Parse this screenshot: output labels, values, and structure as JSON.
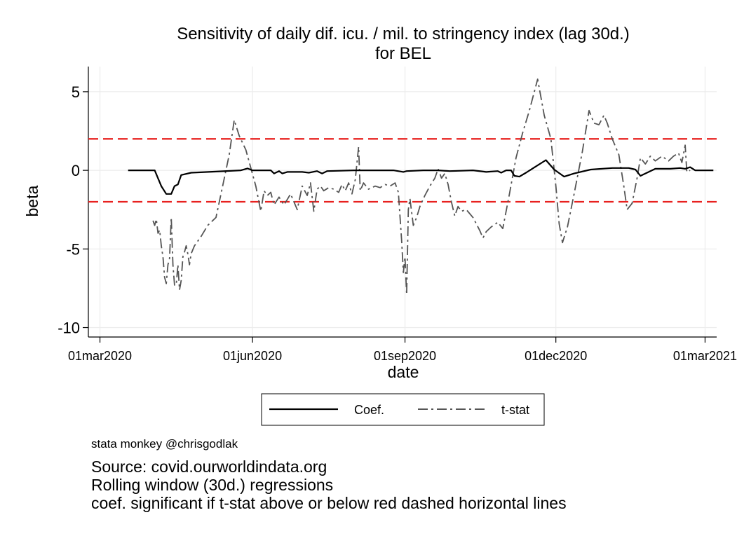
{
  "chart_data": {
    "type": "line",
    "title": [
      "Sensitivity of daily dif. icu. / mil. to stringency index (lag 30d.)",
      "for BEL"
    ],
    "xlabel": "date",
    "ylabel": "beta",
    "x_axis": {
      "range": [
        "2020-02-23",
        "2021-03-08"
      ],
      "ticks": [
        "2020-03-01",
        "2020-06-01",
        "2020-09-01",
        "2020-12-01",
        "2021-03-01"
      ],
      "tick_labels": [
        "01mar2020",
        "01jun2020",
        "01sep2020",
        "01dec2020",
        "01mar2021"
      ]
    },
    "y_axis": {
      "range": [
        -10.6,
        6.6
      ],
      "ticks": [
        5,
        0,
        -5,
        -10
      ],
      "tick_labels": [
        "5",
        "0",
        "-5",
        "-10"
      ]
    },
    "grid": true,
    "reference_lines": [
      {
        "y": 2,
        "color": "#e8211f",
        "style": "dashed"
      },
      {
        "y": -2,
        "color": "#e8211f",
        "style": "dashed"
      }
    ],
    "legend": {
      "position": "bottom",
      "entries": [
        "Coef.",
        "t-stat"
      ]
    },
    "series": [
      {
        "name": "Coef.",
        "color": "#000000",
        "style": "solid",
        "points": [
          [
            "2020-03-18",
            0
          ],
          [
            "2020-04-03",
            0
          ],
          [
            "2020-04-07",
            -1.0
          ],
          [
            "2020-04-10",
            -1.5
          ],
          [
            "2020-04-13",
            -1.5
          ],
          [
            "2020-04-15",
            -1.0
          ],
          [
            "2020-04-17",
            -0.9
          ],
          [
            "2020-04-19",
            -0.3
          ],
          [
            "2020-04-25",
            -0.15
          ],
          [
            "2020-05-10",
            -0.08
          ],
          [
            "2020-05-25",
            0
          ],
          [
            "2020-05-29",
            0.12
          ],
          [
            "2020-06-01",
            0
          ],
          [
            "2020-06-12",
            0
          ],
          [
            "2020-06-14",
            -0.2
          ],
          [
            "2020-06-17",
            -0.05
          ],
          [
            "2020-06-19",
            -0.2
          ],
          [
            "2020-06-22",
            -0.1
          ],
          [
            "2020-07-01",
            -0.1
          ],
          [
            "2020-07-05",
            -0.15
          ],
          [
            "2020-07-10",
            -0.05
          ],
          [
            "2020-07-13",
            -0.2
          ],
          [
            "2020-07-16",
            -0.05
          ],
          [
            "2020-08-01",
            0
          ],
          [
            "2020-08-20",
            0
          ],
          [
            "2020-08-25",
            0
          ],
          [
            "2020-08-31",
            -0.1
          ],
          [
            "2020-09-02",
            -0.05
          ],
          [
            "2020-09-12",
            0
          ],
          [
            "2020-09-21",
            0
          ],
          [
            "2020-09-28",
            -0.05
          ],
          [
            "2020-10-12",
            0
          ],
          [
            "2020-10-20",
            -0.1
          ],
          [
            "2020-10-27",
            -0.05
          ],
          [
            "2020-10-29",
            -0.15
          ],
          [
            "2020-11-01",
            0
          ],
          [
            "2020-11-04",
            0
          ],
          [
            "2020-11-06",
            -0.35
          ],
          [
            "2020-11-09",
            -0.4
          ],
          [
            "2020-11-13",
            -0.15
          ],
          [
            "2020-11-25",
            0.65
          ],
          [
            "2020-11-30",
            0.05
          ],
          [
            "2020-12-06",
            -0.4
          ],
          [
            "2020-12-12",
            -0.2
          ],
          [
            "2020-12-22",
            0.05
          ],
          [
            "2021-01-04",
            0.15
          ],
          [
            "2021-01-14",
            0.15
          ],
          [
            "2021-01-18",
            0.05
          ],
          [
            "2021-01-21",
            -0.35
          ],
          [
            "2021-01-25",
            -0.15
          ],
          [
            "2021-01-30",
            0.1
          ],
          [
            "2021-02-08",
            0.1
          ],
          [
            "2021-02-14",
            0.15
          ],
          [
            "2021-02-17",
            0.1
          ],
          [
            "2021-02-20",
            0.2
          ],
          [
            "2021-02-23",
            0
          ],
          [
            "2021-03-06",
            0
          ]
        ]
      },
      {
        "name": "t-stat",
        "color": "#555555",
        "style": "dash-dot",
        "points": [
          [
            "2020-04-02",
            -3.2
          ],
          [
            "2020-04-03",
            -3.5
          ],
          [
            "2020-04-04",
            -3.1
          ],
          [
            "2020-04-05",
            -4.0
          ],
          [
            "2020-04-06",
            -3.8
          ],
          [
            "2020-04-07",
            -4.8
          ],
          [
            "2020-04-08",
            -5.5
          ],
          [
            "2020-04-09",
            -6.8
          ],
          [
            "2020-04-10",
            -7.2
          ],
          [
            "2020-04-11",
            -6.0
          ],
          [
            "2020-04-12",
            -5.6
          ],
          [
            "2020-04-13",
            -3.0
          ],
          [
            "2020-04-14",
            -6.0
          ],
          [
            "2020-04-15",
            -7.3
          ],
          [
            "2020-04-16",
            -7.3
          ],
          [
            "2020-04-17",
            -6.0
          ],
          [
            "2020-04-18",
            -7.6
          ],
          [
            "2020-04-19",
            -7.0
          ],
          [
            "2020-04-20",
            -5.5
          ],
          [
            "2020-04-21",
            -5.2
          ],
          [
            "2020-04-22",
            -4.8
          ],
          [
            "2020-04-23",
            -5.3
          ],
          [
            "2020-04-24",
            -6.0
          ],
          [
            "2020-04-25",
            -5.3
          ],
          [
            "2020-04-27",
            -4.8
          ],
          [
            "2020-05-01",
            -4.2
          ],
          [
            "2020-05-05",
            -3.5
          ],
          [
            "2020-05-10",
            -3.0
          ],
          [
            "2020-05-14",
            -1.0
          ],
          [
            "2020-05-18",
            1.0
          ],
          [
            "2020-05-21",
            3.2
          ],
          [
            "2020-05-24",
            2.2
          ],
          [
            "2020-05-28",
            1.3
          ],
          [
            "2020-06-03",
            -1.0
          ],
          [
            "2020-06-06",
            -2.6
          ],
          [
            "2020-06-08",
            -1.3
          ],
          [
            "2020-06-10",
            -1.6
          ],
          [
            "2020-06-12",
            -1.4
          ],
          [
            "2020-06-14",
            -2.2
          ],
          [
            "2020-06-17",
            -1.7
          ],
          [
            "2020-06-20",
            -2.2
          ],
          [
            "2020-06-24",
            -1.5
          ],
          [
            "2020-06-28",
            -2.5
          ],
          [
            "2020-07-01",
            -1.0
          ],
          [
            "2020-07-04",
            -1.6
          ],
          [
            "2020-07-06",
            -0.8
          ],
          [
            "2020-07-08",
            -2.6
          ],
          [
            "2020-07-10",
            -1.2
          ],
          [
            "2020-07-12",
            -1.0
          ],
          [
            "2020-07-14",
            -1.3
          ],
          [
            "2020-07-17",
            -1.1
          ],
          [
            "2020-07-20",
            -1.2
          ],
          [
            "2020-07-23",
            -1.4
          ],
          [
            "2020-07-25",
            -0.9
          ],
          [
            "2020-07-27",
            -1.3
          ],
          [
            "2020-07-29",
            -0.8
          ],
          [
            "2020-07-31",
            -1.5
          ],
          [
            "2020-08-02",
            -0.6
          ],
          [
            "2020-08-04",
            1.5
          ],
          [
            "2020-08-05",
            -1.3
          ],
          [
            "2020-08-07",
            -0.8
          ],
          [
            "2020-08-10",
            -1.2
          ],
          [
            "2020-08-14",
            -1.0
          ],
          [
            "2020-08-17",
            -1.1
          ],
          [
            "2020-08-20",
            -0.9
          ],
          [
            "2020-08-23",
            -1.0
          ],
          [
            "2020-08-26",
            -0.8
          ],
          [
            "2020-08-28",
            -1.4
          ],
          [
            "2020-08-30",
            -4.5
          ],
          [
            "2020-08-31",
            -6.5
          ],
          [
            "2020-09-01",
            -5.5
          ],
          [
            "2020-09-02",
            -7.9
          ],
          [
            "2020-09-03",
            -2.5
          ],
          [
            "2020-09-04",
            -1.8
          ],
          [
            "2020-09-06",
            -3.5
          ],
          [
            "2020-09-08",
            -3.0
          ],
          [
            "2020-09-10",
            -2.3
          ],
          [
            "2020-09-13",
            -1.6
          ],
          [
            "2020-09-16",
            -1.0
          ],
          [
            "2020-09-19",
            -0.5
          ],
          [
            "2020-09-21",
            0.1
          ],
          [
            "2020-09-23",
            -0.5
          ],
          [
            "2020-09-25",
            -0.2
          ],
          [
            "2020-09-27",
            -0.9
          ],
          [
            "2020-09-29",
            -2.0
          ],
          [
            "2020-10-01",
            -2.9
          ],
          [
            "2020-10-03",
            -2.3
          ],
          [
            "2020-10-05",
            -2.6
          ],
          [
            "2020-10-08",
            -2.5
          ],
          [
            "2020-10-12",
            -3.0
          ],
          [
            "2020-10-16",
            -3.8
          ],
          [
            "2020-10-18",
            -4.3
          ],
          [
            "2020-10-20",
            -3.9
          ],
          [
            "2020-10-23",
            -3.6
          ],
          [
            "2020-10-27",
            -3.3
          ],
          [
            "2020-10-30",
            -3.7
          ],
          [
            "2020-11-03",
            -1.5
          ],
          [
            "2020-11-07",
            0.8
          ],
          [
            "2020-11-11",
            2.4
          ],
          [
            "2020-11-15",
            3.8
          ],
          [
            "2020-11-20",
            5.8
          ],
          [
            "2020-11-24",
            3.5
          ],
          [
            "2020-11-28",
            2.0
          ],
          [
            "2020-12-01",
            -1.0
          ],
          [
            "2020-12-03",
            -3.4
          ],
          [
            "2020-12-05",
            -4.6
          ],
          [
            "2020-12-08",
            -3.6
          ],
          [
            "2020-12-12",
            -1.5
          ],
          [
            "2020-12-17",
            1.2
          ],
          [
            "2020-12-21",
            3.8
          ],
          [
            "2020-12-24",
            3.0
          ],
          [
            "2020-12-27",
            2.9
          ],
          [
            "2020-12-30",
            3.5
          ],
          [
            "2021-01-01",
            3.0
          ],
          [
            "2021-01-04",
            2.0
          ],
          [
            "2021-01-08",
            1.0
          ],
          [
            "2021-01-11",
            -1.0
          ],
          [
            "2021-01-13",
            -2.5
          ],
          [
            "2021-01-16",
            -2.1
          ],
          [
            "2021-01-19",
            -0.5
          ],
          [
            "2021-01-21",
            0.8
          ],
          [
            "2021-01-24",
            0.4
          ],
          [
            "2021-01-27",
            0.9
          ],
          [
            "2021-01-30",
            0.6
          ],
          [
            "2021-02-03",
            0.9
          ],
          [
            "2021-02-07",
            0.6
          ],
          [
            "2021-02-10",
            0.9
          ],
          [
            "2021-02-13",
            1.1
          ],
          [
            "2021-02-15",
            0.5
          ],
          [
            "2021-02-17",
            1.6
          ],
          [
            "2021-02-18",
            -0.1
          ],
          [
            "2021-02-20",
            0.0
          ]
        ]
      }
    ]
  },
  "credit": "stata monkey @chrisgodlak",
  "notes": [
    "Source: covid.ourworldindata.org",
    "Rolling window (30d.) regressions",
    "coef. significant if t-stat above or below red dashed horizontal lines"
  ]
}
